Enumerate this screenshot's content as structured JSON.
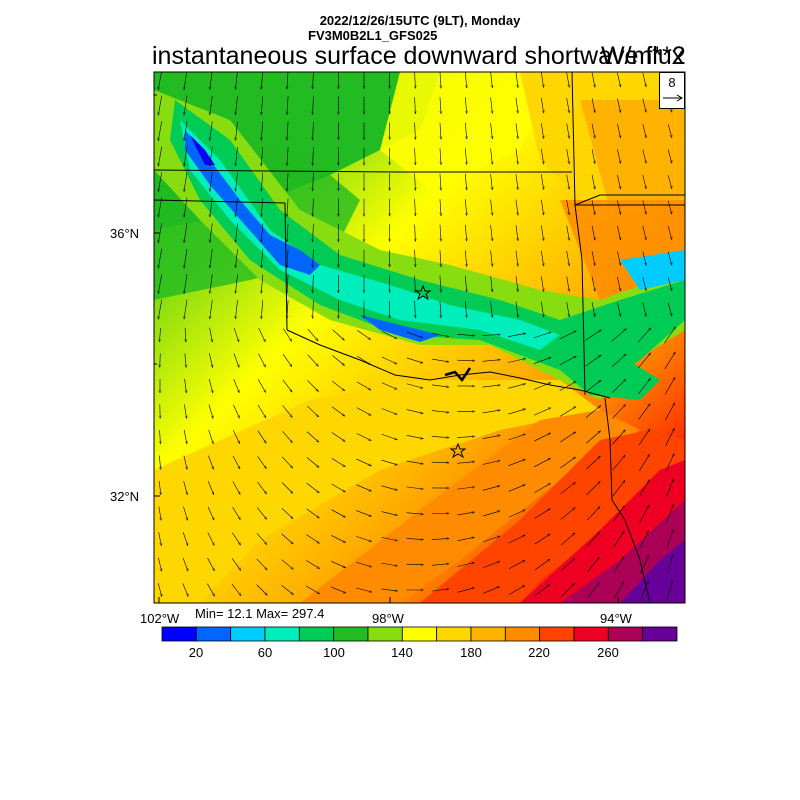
{
  "header": {
    "datetime": "2022/12/26/15UTC (9LT), Monday",
    "model": "FV3M0B2L1_GFS025",
    "title": "instantaneous surface downward shortwave flux",
    "units": "W/m**2"
  },
  "wind_reference": {
    "value": "8"
  },
  "axes": {
    "lat_labels": [
      "36°N",
      "32°N"
    ],
    "lon_labels": [
      "102°W",
      "98°W",
      "94°W"
    ]
  },
  "stats": {
    "text": "Min= 12.1 Max= 297.4",
    "min": 12.1,
    "max": 297.4
  },
  "colorbar": {
    "colors": [
      "#0000ff",
      "#0066ff",
      "#00ccff",
      "#00eebb",
      "#00cc55",
      "#22bb22",
      "#88dd11",
      "#ffff00",
      "#ffd700",
      "#ffb300",
      "#ff8c00",
      "#ff4400",
      "#ee0022",
      "#aa0055",
      "#660099"
    ],
    "labels": [
      "20",
      "60",
      "100",
      "140",
      "180",
      "220",
      "260"
    ]
  },
  "markers": {
    "count": 2
  }
}
